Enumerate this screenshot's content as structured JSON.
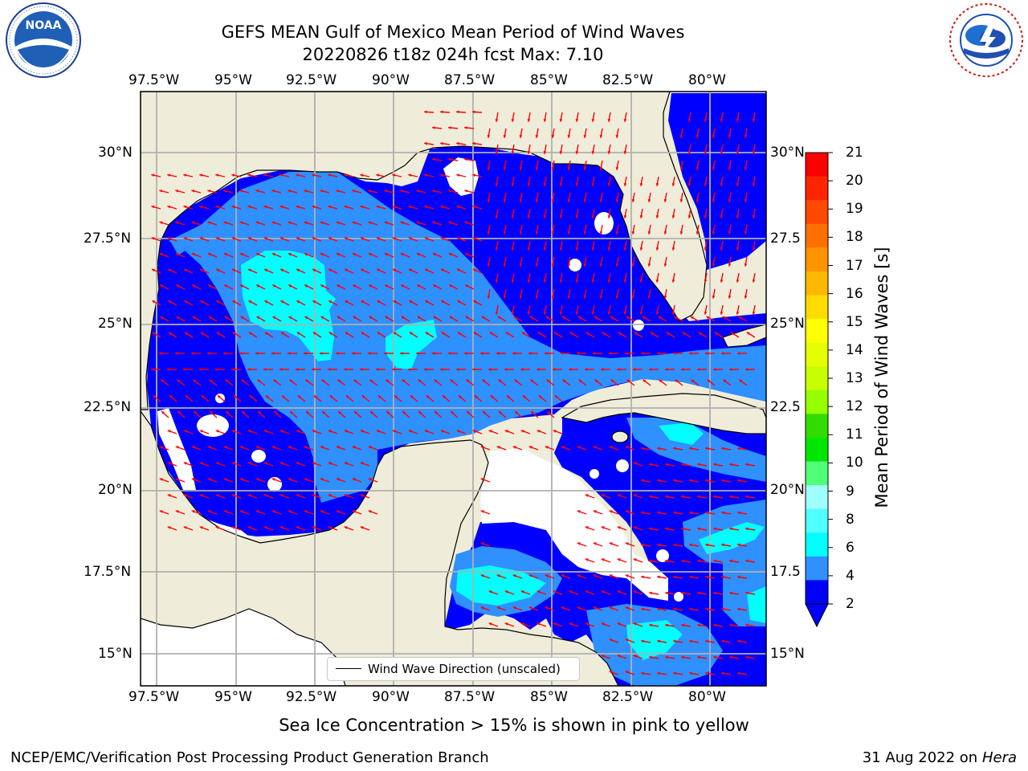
{
  "header": {
    "title_line1": "GEFS MEAN Gulf of Mexico Mean Period of Wind Waves",
    "title_line2": "20220826 t18z 024h fcst   Max: 7.10"
  },
  "logos": {
    "noaa_text": "NOAA",
    "noaa_ring_text": "NATIONAL OCEANIC AND ATMOSPHERIC ADMINISTRATION · U.S. DEPARTMENT OF COMMERCE",
    "nws_ring_text": "NATIONAL WEATHER SERVICE"
  },
  "map": {
    "lon_labels_top": [
      "97.5°W",
      "95°W",
      "92.5°W",
      "90°W",
      "87.5°W",
      "85°W",
      "82.5°W",
      "80°W"
    ],
    "lon_labels_bottom": [
      "97.5°W",
      "95°W",
      "92.5°W",
      "90°W",
      "87.5°W",
      "85°W",
      "82.5°W",
      "80°W"
    ],
    "lat_labels_left": [
      "30°N",
      "27.5°N",
      "25°N",
      "22.5°N",
      "20°N",
      "17.5°N",
      "15°N"
    ],
    "lat_labels_right": [
      "30°N",
      "27.5",
      "25°N",
      "22.5",
      "20°N",
      "17.5",
      "15°N"
    ],
    "colors": {
      "land": "#efedd9",
      "coast": "#000000",
      "grid": "#b0b0b0",
      "arrow": "#ff0000",
      "band_2_4": "#0000ff",
      "band_4_6": "#2f90ff",
      "band_6_8": "#00ffff"
    },
    "legend_label": "Wind Wave Direction (unscaled)"
  },
  "colorbar": {
    "title": "Mean Period of Wind Waves [s]",
    "levels": [
      "21",
      "20",
      "19",
      "18",
      "17",
      "16",
      "15",
      "14",
      "13",
      "12",
      "11",
      "10",
      "9",
      "8",
      "6",
      "4",
      "2"
    ],
    "colors": [
      "#ff0000",
      "#ff2400",
      "#ff4800",
      "#ff7000",
      "#ff9400",
      "#ffb800",
      "#ffdc00",
      "#ffff00",
      "#e6ff00",
      "#c8ff00",
      "#96ff00",
      "#32dc00",
      "#00e600",
      "#50ff78",
      "#a0ffff",
      "#50ffff",
      "#00ffff",
      "#2f90ff",
      "#0000ff"
    ]
  },
  "caption": "Sea Ice Concentration > 15% is shown in pink to yellow",
  "footer": {
    "left": "NCEP/EMC/Verification Post Processing Product Generation Branch",
    "date": "31 Aug 2022 on",
    "host": "Hera"
  }
}
